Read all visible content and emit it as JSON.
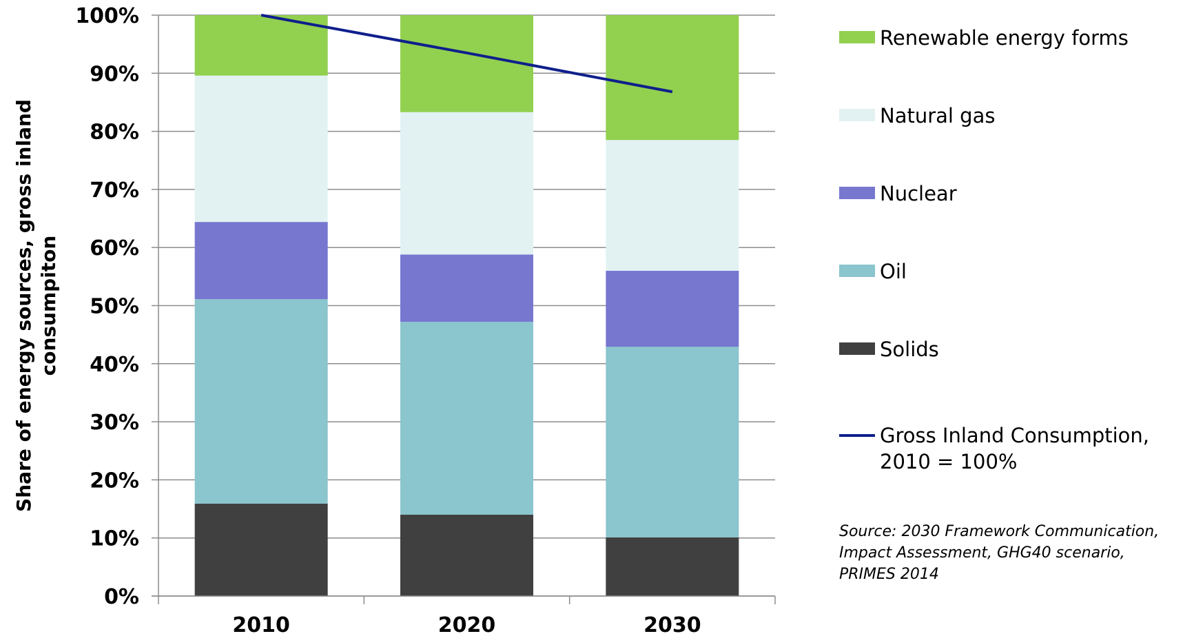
{
  "chart_data": {
    "type": "bar",
    "stacked": true,
    "categories": [
      "2010",
      "2020",
      "2030"
    ],
    "ylim": [
      0,
      100
    ],
    "yticks": [
      0,
      10,
      20,
      30,
      40,
      50,
      60,
      70,
      80,
      90,
      100
    ],
    "ytick_suffix": "%",
    "ylabel": "Share of energy sources, gross inland consumpiton",
    "ylabel_lines": [
      "Share of energy sources, gross inland",
      "consumpiton"
    ],
    "grid": true,
    "legend_position": "right",
    "series": [
      {
        "name": "Solids",
        "color": "#404040",
        "values": [
          15.9,
          14.0,
          10.1
        ]
      },
      {
        "name": "Oil",
        "color": "#8BC5CD",
        "values": [
          35.2,
          33.2,
          32.8
        ]
      },
      {
        "name": "Nuclear",
        "color": "#7777D0",
        "values": [
          13.3,
          11.6,
          13.1
        ]
      },
      {
        "name": "Natural gas",
        "color": "#E2F2F3",
        "values": [
          25.2,
          24.5,
          22.5
        ]
      },
      {
        "name": "Renewable energy forms",
        "color": "#92D050",
        "values": [
          10.4,
          16.7,
          21.5
        ]
      }
    ],
    "line": {
      "name": "Gross Inland Consumption, 2010 = 100%",
      "name_lines": [
        "Gross Inland Consumption,",
        "2010 = 100%"
      ],
      "color": "#0F1F8C",
      "values": [
        100,
        93.5,
        86.8
      ]
    },
    "source_lines": [
      "Source: 2030 Framework Communication,",
      "Impact Assessment, GHG40 scenario,",
      "PRIMES 2014"
    ]
  }
}
